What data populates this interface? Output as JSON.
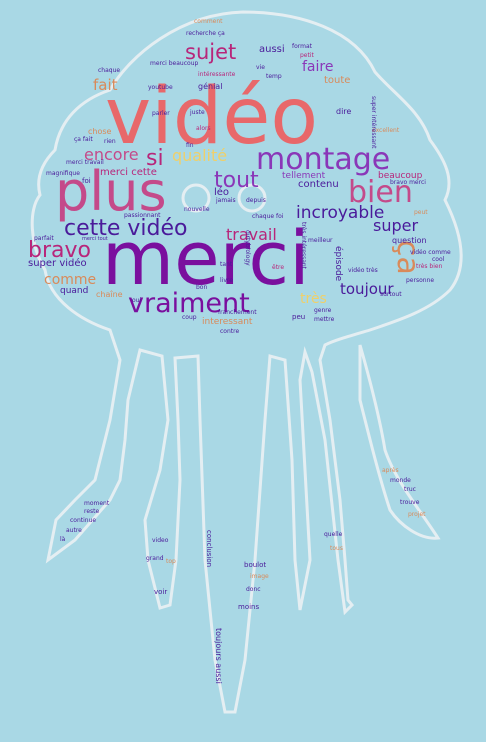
{
  "colors": {
    "background": "#a9d8e5",
    "outline": "#e4eef2",
    "palette": [
      "#e8686a",
      "#b8257a",
      "#7a0f9e",
      "#8a37b8",
      "#d98a5a",
      "#efd06a",
      "#4a1a9a",
      "#c44a8a"
    ]
  },
  "words": [
    "merci",
    "vidéo",
    "plus",
    "montage",
    "cette vidéo",
    "bravo",
    "vraiment",
    "bien",
    "ça",
    "tout",
    "sujet",
    "qualité",
    "encore",
    "incroyable",
    "super",
    "travail",
    "fait",
    "faire",
    "toujour",
    "si",
    "comme",
    "très",
    "super vidéo",
    "merci cette",
    "contenu",
    "tellement",
    "beaucoup",
    "léo",
    "fin",
    "dire",
    "toute",
    "aussi",
    "génial",
    "question",
    "épisode",
    "chaîne",
    "interessant",
    "chaque",
    "parler",
    "youtube",
    "juste",
    "alors",
    "excellent",
    "nouvelle",
    "depuis",
    "jamais",
    "passionnant",
    "parfait",
    "magnifique",
    "quand",
    "bravo merci",
    "vidéo comme",
    "vidéo très",
    "très bien",
    "cool",
    "personne",
    "surtout",
    "genre",
    "mettre",
    "peu",
    "coup",
    "contre",
    "franchement",
    "bon",
    "être",
    "livre",
    "tant",
    "oui",
    "merci travail",
    "ça fait",
    "rien",
    "chose",
    "foi",
    "petit",
    "format",
    "temp",
    "vie",
    "intéressante",
    "recherche ça",
    "comment",
    "merci beaucoup",
    "toujours aussi",
    "conclusion",
    "boulot",
    "image",
    "donc",
    "moins",
    "voir",
    "grand",
    "top",
    "moment",
    "reste",
    "continue",
    "autre",
    "là",
    "après",
    "monde",
    "truc",
    "trouve",
    "projet",
    "tous",
    "quelle",
    "video",
    "dirtybiology",
    "meilleur",
    "très intéressant",
    "super intéressant",
    "chaque foi",
    "merci tout",
    "peut"
  ]
}
